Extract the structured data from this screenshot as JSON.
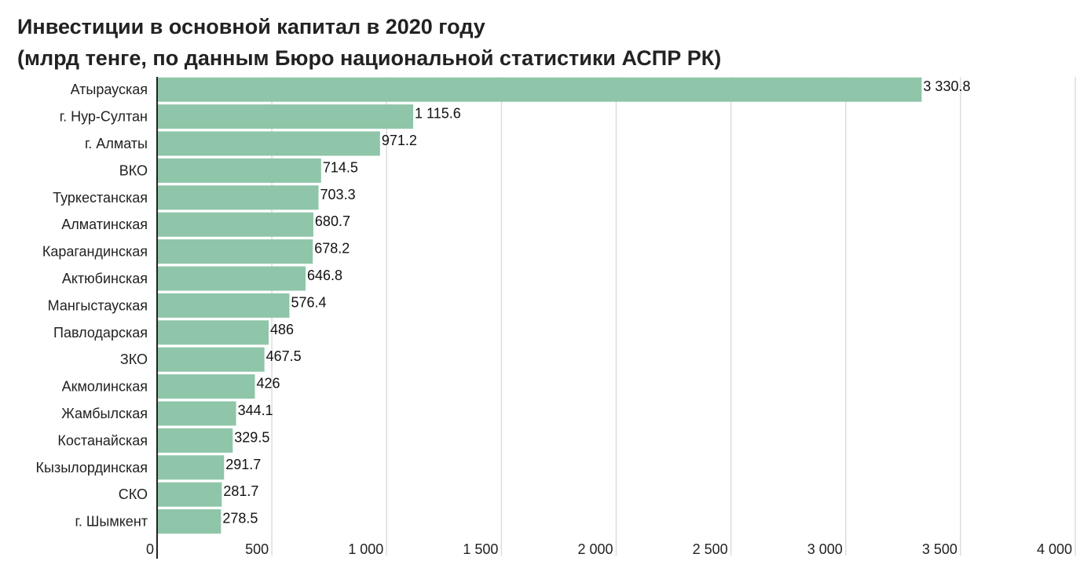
{
  "chart_data": {
    "type": "bar",
    "orientation": "horizontal",
    "title": "Инвестиции в основной капитал в 2020 году",
    "subtitle": "(млрд тенге, по данным Бюро национальной статистики АСПР РК)",
    "categories": [
      "Атырауская",
      "г. Нур-Султан",
      "г. Алматы",
      "ВКО",
      "Туркестанская",
      "Алматинская",
      "Карагандинская",
      "Актюбинская",
      "Мангыстауская",
      "Павлодарская",
      "ЗКО",
      "Акмолинская",
      "Жамбылская",
      "Костанайская",
      "Кызылординская",
      "СКО",
      "г. Шымкент"
    ],
    "values": [
      3330.8,
      1115.6,
      971.2,
      714.5,
      703.3,
      680.7,
      678.2,
      646.8,
      576.4,
      486,
      467.5,
      426,
      344.1,
      329.5,
      291.7,
      281.7,
      278.5
    ],
    "value_labels": [
      "3 330.8",
      "1 115.6",
      "971.2",
      "714.5",
      "703.3",
      "680.7",
      "678.2",
      "646.8",
      "576.4",
      "486",
      "467.5",
      "426",
      "344.1",
      "329.5",
      "291.7",
      "281.7",
      "278.5"
    ],
    "xlim": [
      0,
      4000
    ],
    "xticks": [
      0,
      500,
      1000,
      1500,
      2000,
      2500,
      3000,
      3500,
      4000
    ],
    "xtick_labels": [
      "0",
      "500",
      "1 000",
      "1 500",
      "2 000",
      "2 500",
      "3 000",
      "3 500",
      "4 000"
    ],
    "grid": true,
    "legend": "none",
    "bar_color": "#8fc5a8",
    "grid_color": "#dddddd",
    "axis_color": "#222222"
  }
}
